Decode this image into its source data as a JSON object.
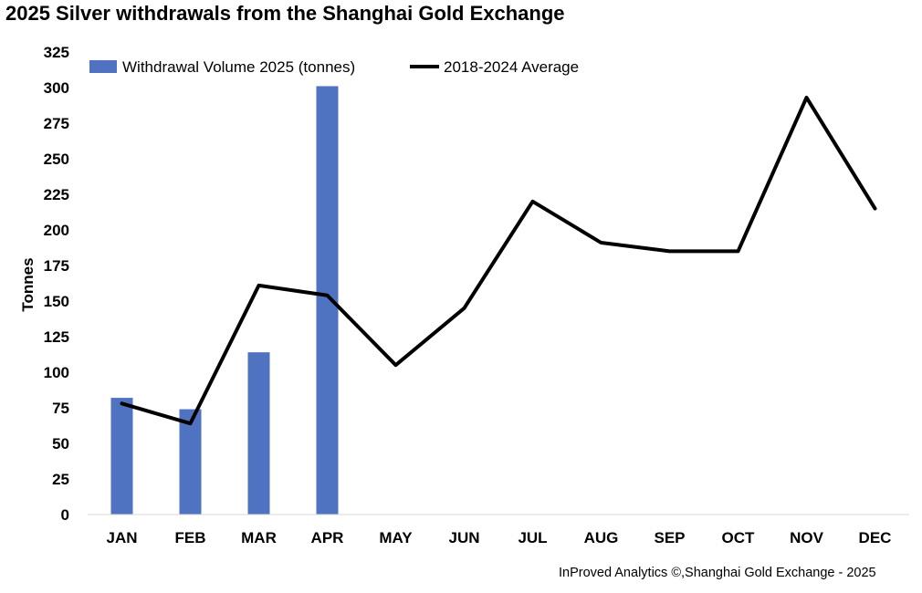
{
  "chart_data": {
    "type": "bar",
    "title": "2025 Silver withdrawals from the Shanghai Gold Exchange",
    "ylabel": "Tonnes",
    "xlabel": "",
    "ylim": [
      0,
      325
    ],
    "yticks": [
      0,
      25,
      50,
      75,
      100,
      125,
      150,
      175,
      200,
      225,
      250,
      275,
      300,
      325
    ],
    "categories": [
      "JAN",
      "FEB",
      "MAR",
      "APR",
      "MAY",
      "JUN",
      "JUL",
      "AUG",
      "SEP",
      "OCT",
      "NOV",
      "DEC"
    ],
    "grid": false,
    "legend_position": "top",
    "series": [
      {
        "name": "Withdrawal Volume 2025 (tonnes)",
        "type": "bar",
        "color": "#4f73c1",
        "values": [
          82,
          74,
          114,
          301,
          null,
          null,
          null,
          null,
          null,
          null,
          null,
          null
        ]
      },
      {
        "name": "2018-2024 Average",
        "type": "line",
        "color": "#000000",
        "values": [
          78,
          64,
          161,
          154,
          105,
          145,
          220,
          191,
          185,
          185,
          293,
          215
        ]
      }
    ]
  },
  "source_note": "InProved Analytics ©,Shanghai Gold Exchange - 2025"
}
